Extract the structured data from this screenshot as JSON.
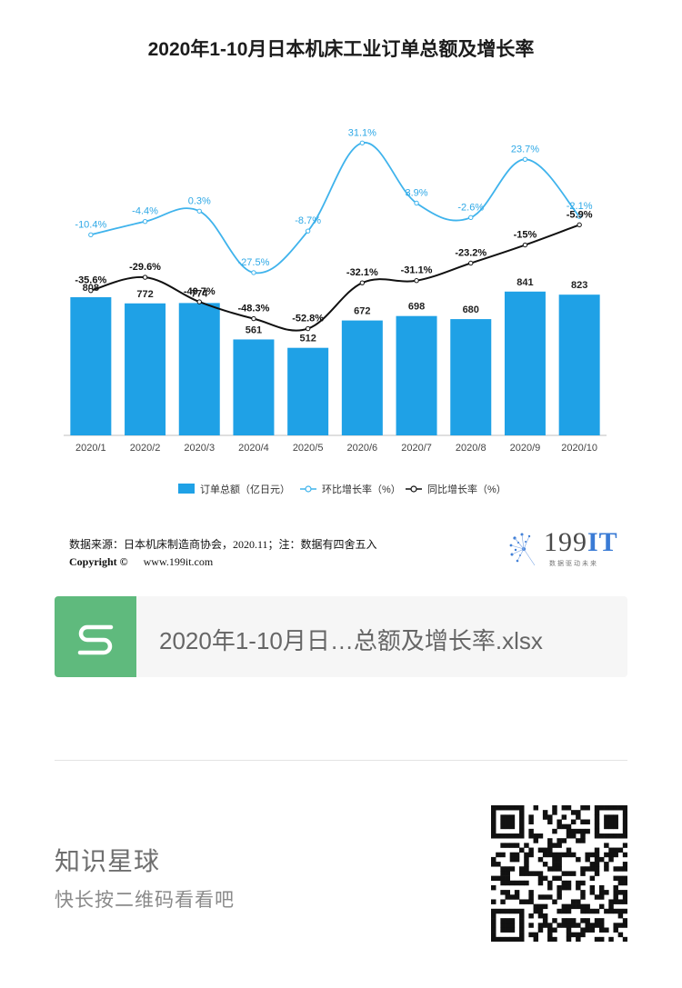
{
  "chart_data": {
    "type": "bar",
    "title": "2020年1-10月日本机床工业订单总额及增长率",
    "categories": [
      "2020/1",
      "2020/2",
      "2020/3",
      "2020/4",
      "2020/5",
      "2020/6",
      "2020/7",
      "2020/8",
      "2020/9",
      "2020/10"
    ],
    "series": [
      {
        "name": "订单总额（亿日元）",
        "type": "bar",
        "color": "#1fa1e6",
        "values": [
          808,
          772,
          774,
          561,
          512,
          672,
          698,
          680,
          841,
          823
        ],
        "labels": [
          "808",
          "772",
          "774",
          "561",
          "512",
          "672",
          "698",
          "680",
          "841",
          "823"
        ]
      },
      {
        "name": "环比增长率（%）",
        "type": "line",
        "color": "#3fb3ec",
        "smooth": true,
        "values": [
          -10.4,
          -4.4,
          0.3,
          -27.5,
          -8.7,
          31.1,
          3.9,
          -2.6,
          23.7,
          -2.1
        ],
        "labels": [
          "-10.4%",
          "-4.4%",
          "0.3%",
          "-27.5%",
          "-8.7%",
          "31.1%",
          "3.9%",
          "-2.6%",
          "23.7%",
          "-2.1%"
        ]
      },
      {
        "name": "同比增长率（%）",
        "type": "line",
        "color": "#111111",
        "smooth": true,
        "values": [
          -35.6,
          -29.6,
          -40.7,
          -48.3,
          -52.8,
          -32.1,
          -31.1,
          -23.2,
          -15,
          -5.9
        ],
        "labels": [
          "-35.6%",
          "-29.6%",
          "-40.7%",
          "-48.3%",
          "-52.8%",
          "-32.1%",
          "-31.1%",
          "-23.2%",
          "-15%",
          "-5.9%"
        ]
      }
    ],
    "bar_ylim": [
      0,
      900
    ],
    "line_ylim": [
      -60,
      40
    ],
    "grid": false,
    "legend_placement": "bottom-center"
  },
  "footer": {
    "source_text": "数据来源：日本机床制造商协会，2020.11；注：数据有四舍五入",
    "copyright_label": "Copyright ©",
    "copyright_url": "www.199it.com",
    "logo_number": "199",
    "logo_it": "IT",
    "logo_tagline": "数据驱动未来"
  },
  "file_card": {
    "file_name": "2020年1-10月日…总额及增长率.xlsx",
    "icon": "spreadsheet-s-icon",
    "icon_color": "#5fba7d"
  },
  "promo": {
    "title": "知识星球",
    "subtitle": "快长按二维码看看吧",
    "qr_icon": "qr-code-icon"
  }
}
